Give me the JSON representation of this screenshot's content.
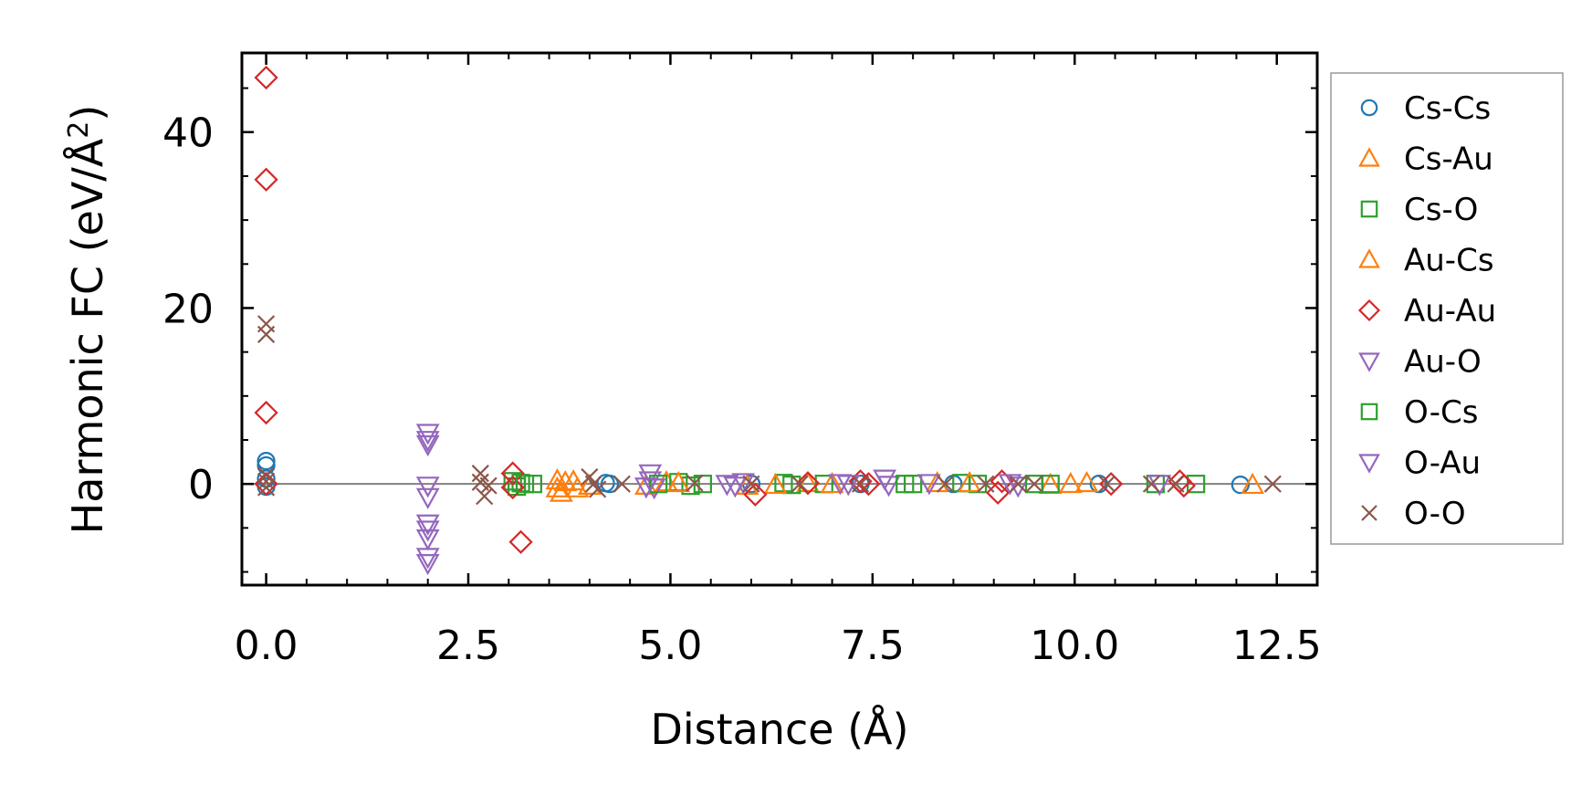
{
  "chart_data": {
    "type": "scatter",
    "title": "",
    "xlabel": "Distance (Å)",
    "ylabel_prefix": "Harmonic FC (eV/Å",
    "ylabel_sup": "2",
    "ylabel_suffix": ")",
    "xlim": [
      -0.3,
      13.0
    ],
    "ylim": [
      -11.5,
      49
    ],
    "xticks": [
      0.0,
      2.5,
      5.0,
      7.5,
      10.0,
      12.5
    ],
    "xtick_labels": [
      "0.0",
      "2.5",
      "5.0",
      "7.5",
      "10.0",
      "12.5"
    ],
    "yticks": [
      0,
      20,
      40
    ],
    "ytick_labels": [
      "0",
      "20",
      "40"
    ],
    "zero_line": true,
    "legend_position": "right-outside-top",
    "series": [
      {
        "name": "Cs-Cs",
        "marker": "circle",
        "color": "#1f77b4",
        "x": [
          0,
          0,
          0,
          0,
          4.2,
          4.25,
          6.0,
          7.35,
          8.5,
          10.3,
          12.05
        ],
        "y": [
          2.6,
          2.1,
          0.6,
          -0.3,
          0.1,
          0.0,
          0.0,
          0.0,
          0.0,
          0.0,
          -0.1
        ]
      },
      {
        "name": "Cs-Au",
        "marker": "triangle-up",
        "color": "#ff7f0e",
        "x": [
          3.6,
          3.6,
          3.65,
          3.8,
          3.85,
          4.7,
          4.95,
          5.95,
          6.7,
          8.3,
          9.7,
          10.15,
          12.2
        ],
        "y": [
          0.4,
          -0.5,
          -1.0,
          0.3,
          -0.5,
          -0.2,
          0.2,
          -0.2,
          0.1,
          0.1,
          -0.1,
          0.1,
          -0.1
        ]
      },
      {
        "name": "Cs-O",
        "marker": "square",
        "color": "#2ca02c",
        "x": [
          3.05,
          3.1,
          3.15,
          3.3,
          5.1,
          5.25,
          5.4,
          6.4,
          6.5,
          6.9,
          8.0,
          8.6,
          8.8,
          9.7,
          11.0,
          11.5
        ],
        "y": [
          0.3,
          -0.3,
          0.1,
          0.0,
          0.2,
          -0.2,
          0.0,
          0.1,
          -0.1,
          0.0,
          0.0,
          0.1,
          0.0,
          0.0,
          0.0,
          0.0
        ]
      },
      {
        "name": "Au-Cs",
        "marker": "triangle-up",
        "color": "#ff7f0e",
        "x": [
          3.7,
          4.0,
          5.1,
          6.3,
          7.0,
          8.7,
          9.95
        ],
        "y": [
          0.2,
          -0.2,
          0.1,
          -0.1,
          0.0,
          0.1,
          0.0
        ]
      },
      {
        "name": "Au-Au",
        "marker": "diamond",
        "color": "#d62728",
        "x": [
          0,
          0,
          0,
          0,
          3.05,
          3.05,
          3.15,
          6.05,
          6.7,
          7.35,
          7.45,
          9.05,
          9.1,
          10.45,
          11.3,
          11.35
        ],
        "y": [
          46.2,
          34.6,
          8.1,
          0.0,
          1.2,
          -0.4,
          -6.6,
          -1.2,
          0.1,
          0.3,
          0.0,
          -1.0,
          0.3,
          0.0,
          0.3,
          -0.2
        ]
      },
      {
        "name": "Au-O",
        "marker": "triangle-down",
        "color": "#9467bd",
        "x": [
          2.0,
          2.0,
          2.0,
          2.0,
          2.0,
          2.0,
          2.0,
          2.0,
          2.0,
          2.0,
          4.75,
          4.75,
          4.8,
          5.7,
          5.8,
          7.1,
          7.65,
          7.7,
          9.2,
          9.3,
          11.05
        ],
        "y": [
          5.8,
          5.0,
          4.5,
          -0.2,
          -1.5,
          -4.5,
          -5.2,
          -6.2,
          -8.3,
          -9.0,
          1.2,
          0.4,
          -0.4,
          0.0,
          -0.2,
          0.1,
          0.6,
          -0.1,
          0.1,
          -0.2,
          0.0
        ]
      },
      {
        "name": "O-Cs",
        "marker": "square",
        "color": "#2ca02c",
        "x": [
          3.2,
          4.85,
          7.9,
          9.5
        ],
        "y": [
          0.0,
          0.0,
          0.0,
          0.0
        ]
      },
      {
        "name": "O-Au",
        "marker": "triangle-down",
        "color": "#9467bd",
        "x": [
          4.7,
          5.9,
          7.2,
          8.2
        ],
        "y": [
          -0.3,
          0.2,
          0.0,
          0.1
        ]
      },
      {
        "name": "O-O",
        "marker": "x",
        "color": "#8c564b",
        "x": [
          0,
          0,
          0,
          0,
          0,
          2.65,
          2.65,
          2.7,
          2.75,
          4.0,
          4.05,
          4.1,
          4.4,
          5.3,
          6.0,
          6.6,
          7.35,
          8.4,
          8.9,
          9.3,
          9.5,
          10.4,
          10.95,
          11.25,
          12.45
        ],
        "y": [
          18.2,
          17.0,
          1.0,
          0.3,
          -0.4,
          1.2,
          0.2,
          -1.4,
          -0.2,
          0.8,
          0.0,
          -0.6,
          0.0,
          0.1,
          0.0,
          0.0,
          0.0,
          0.0,
          0.0,
          0.0,
          0.0,
          0.0,
          0.0,
          0.0,
          0.0
        ]
      }
    ]
  }
}
